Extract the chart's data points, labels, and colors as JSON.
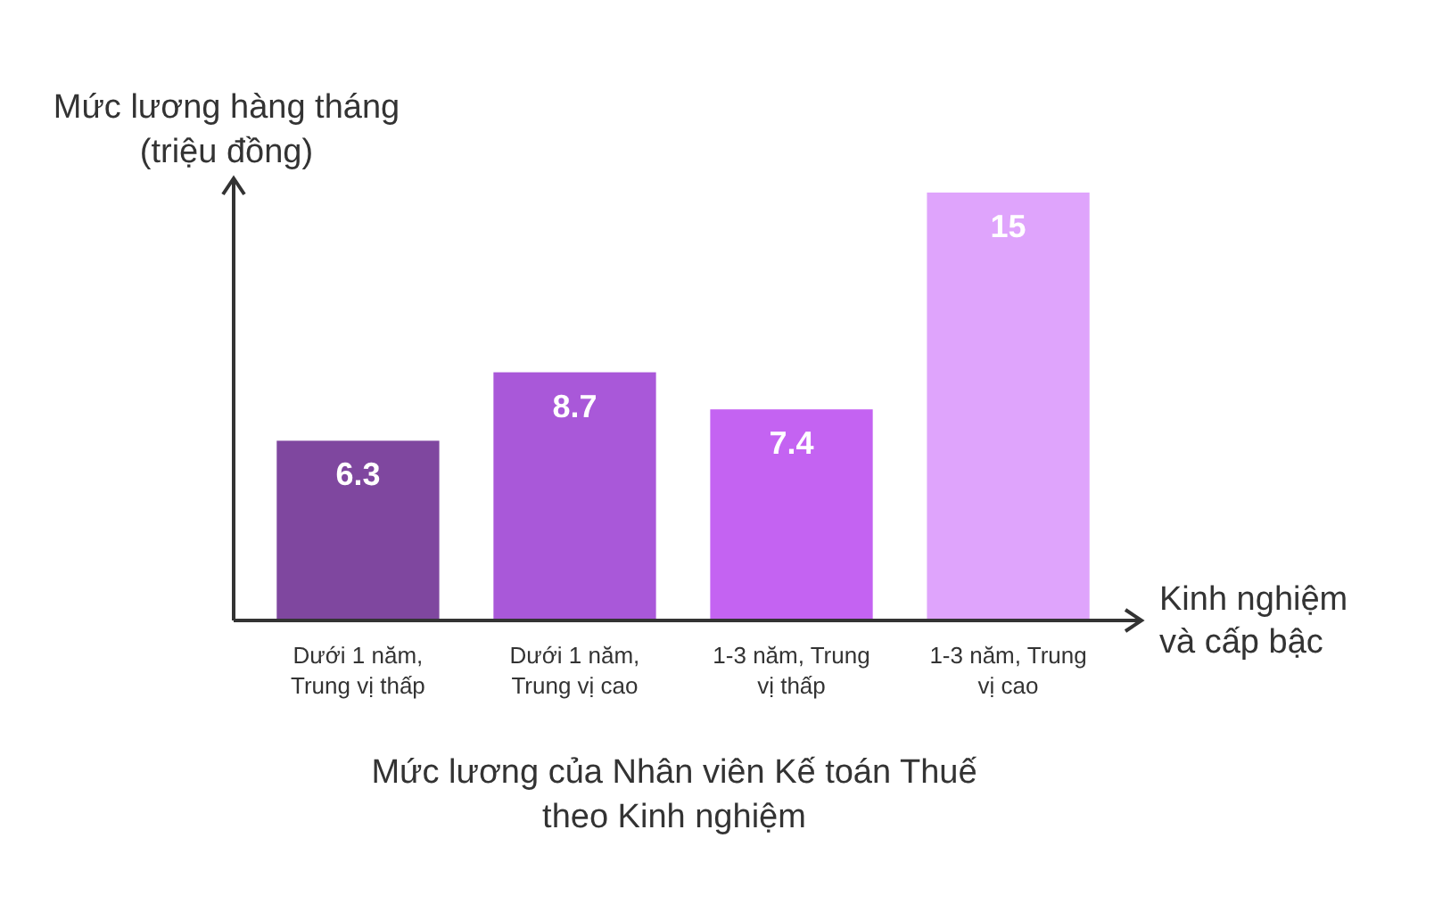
{
  "chart_data": {
    "type": "bar",
    "title": "Mức lương của Nhân viên Kế toán Thuế theo Kinh nghiệm",
    "ylabel": "Mức lương hàng tháng (triệu đồng)",
    "xlabel": "Kinh nghiệm và cấp bậc",
    "categories": [
      "Dưới 1 năm, Trung vị thấp",
      "Dưới 1 năm, Trung vị cao",
      "1-3 năm, Trung vị thấp",
      "1-3 năm, Trung vị cao"
    ],
    "values": [
      6.3,
      8.7,
      7.4,
      15
    ],
    "colors": [
      "#7f479f",
      "#a958d9",
      "#c463f2",
      "#dfa4fc"
    ],
    "data_labels": true
  }
}
